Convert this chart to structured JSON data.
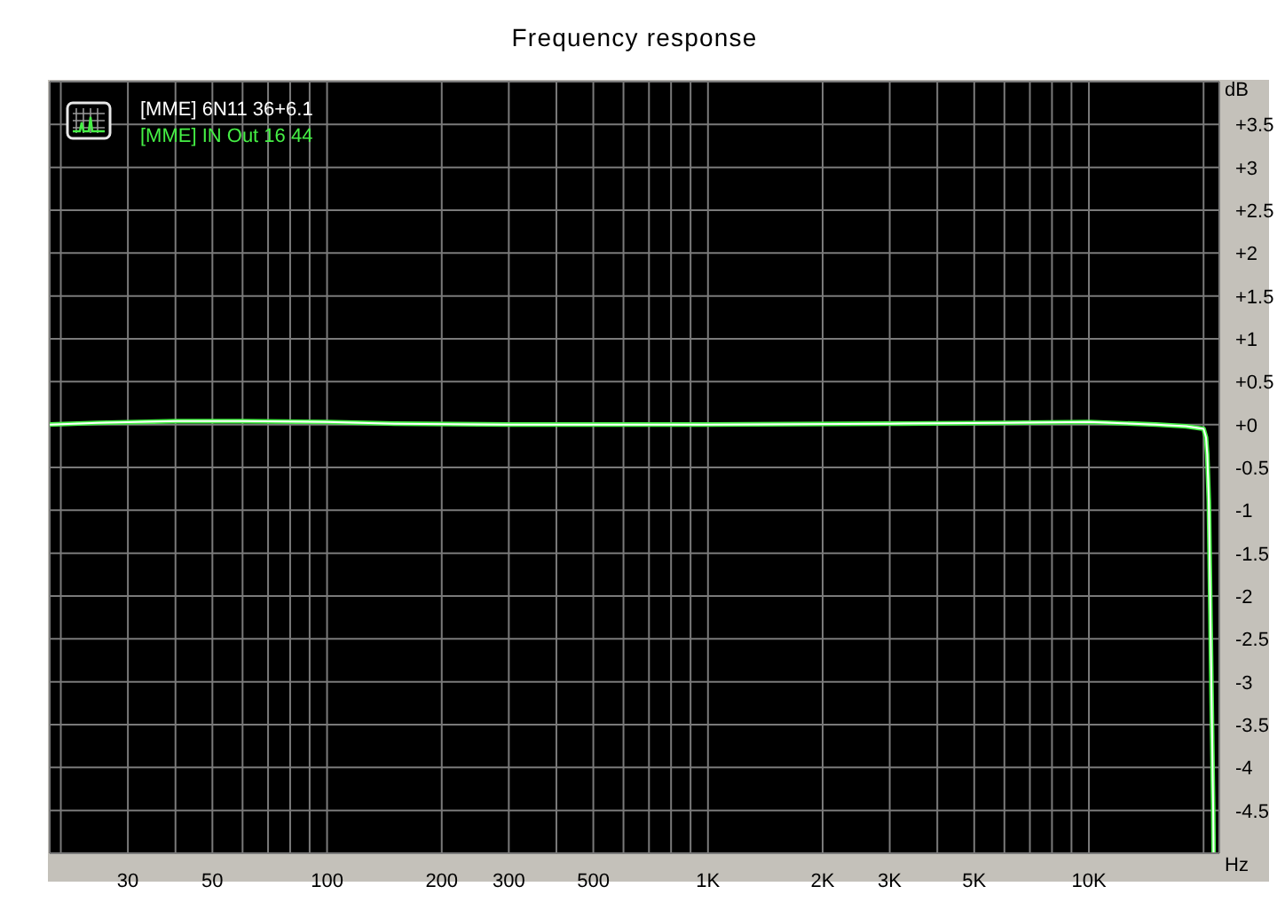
{
  "chart_data": {
    "type": "line",
    "title": "Frequency response",
    "xlabel": "Hz",
    "ylabel": "dB",
    "log": "x",
    "x": [
      18.7,
      25,
      40,
      60,
      100,
      150,
      300,
      1000,
      3000,
      6000,
      10000,
      15000,
      18000,
      20000,
      20300,
      20450,
      20650,
      21200,
      21250
    ],
    "series": [
      {
        "name": "[MME] 6N11 36+6.1",
        "color": "#ffffff",
        "values": [
          0,
          0.02,
          0.04,
          0.04,
          0.03,
          0.01,
          0,
          0,
          0.01,
          0.02,
          0.03,
          0,
          -0.02,
          -0.05,
          -0.15,
          -0.35,
          -0.9,
          -4.5,
          -5
        ]
      },
      {
        "name": "[MME] IN Out 16 44",
        "color": "#45f045",
        "values": [
          0,
          0.02,
          0.04,
          0.04,
          0.03,
          0.01,
          0,
          0,
          0.01,
          0.02,
          0.03,
          0,
          -0.02,
          -0.05,
          -0.15,
          -0.35,
          -0.9,
          -4.5,
          -5
        ]
      }
    ],
    "xlim": [
      18.7,
      22000
    ],
    "xticks": [
      {
        "value": 20,
        "label": null
      },
      30,
      {
        "value": 40,
        "label": null
      },
      50,
      {
        "value": 60,
        "label": null
      },
      {
        "value": 70,
        "label": null
      },
      {
        "value": 80,
        "label": null
      },
      {
        "value": 90,
        "label": null
      },
      100,
      200,
      300,
      {
        "value": 400,
        "label": null
      },
      500,
      {
        "value": 600,
        "label": null
      },
      {
        "value": 700,
        "label": null
      },
      {
        "value": 800,
        "label": null
      },
      {
        "value": 900,
        "label": null
      },
      {
        "value": 1000,
        "label": "1K"
      },
      {
        "value": 2000,
        "label": "2K"
      },
      {
        "value": 3000,
        "label": "3K"
      },
      {
        "value": 4000,
        "label": null
      },
      {
        "value": 5000,
        "label": "5K"
      },
      {
        "value": 6000,
        "label": null
      },
      {
        "value": 7000,
        "label": null
      },
      {
        "value": 8000,
        "label": null
      },
      {
        "value": 9000,
        "label": null
      },
      {
        "value": 10000,
        "label": "10K"
      },
      {
        "value": 20000,
        "label": null
      }
    ],
    "ylim": [
      -5,
      4
    ],
    "yticks": [
      {
        "value": 3.5,
        "label": "+3.5"
      },
      {
        "value": 3,
        "label": "+3"
      },
      {
        "value": 2.5,
        "label": "+2.5"
      },
      {
        "value": 2,
        "label": "+2"
      },
      {
        "value": 1.5,
        "label": "+1.5"
      },
      {
        "value": 1,
        "label": "+1"
      },
      {
        "value": 0.5,
        "label": "+0.5"
      },
      {
        "value": 0,
        "label": "+0"
      },
      -0.5,
      -1,
      -1.5,
      -2,
      -2.5,
      -3,
      -3.5,
      -4,
      -4.5
    ],
    "grid": true,
    "legend": "top left"
  }
}
